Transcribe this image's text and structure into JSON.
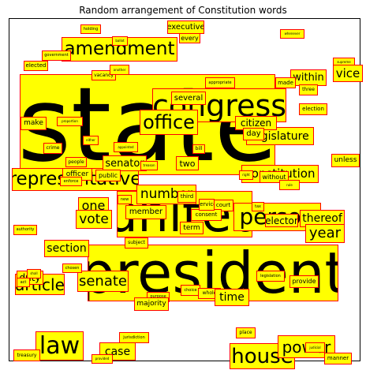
{
  "title": "Random arrangement of Constitution words",
  "colors": {
    "box_fill": "#ffff00",
    "box_border": "#ff0000",
    "text": "#000000"
  },
  "words": [
    "state",
    "president",
    "united",
    "congress",
    "amendment",
    "person",
    "representative",
    "office",
    "article",
    "law",
    "house",
    "senate",
    "power",
    "number",
    "senator",
    "legislature",
    "executive",
    "every",
    "holding",
    "ballot",
    "government",
    "elected",
    "whenever",
    "supreme",
    "vice",
    "within",
    "vacancy",
    "another",
    "appropriate",
    "made",
    "three",
    "election",
    "several",
    "citizen",
    "make",
    "day",
    "proportion",
    "either",
    "crime",
    "appointed",
    "bill",
    "unless",
    "constitution",
    "people",
    "treason",
    "two",
    "officer",
    "public",
    "enforce",
    "right",
    "without",
    "rule",
    "one",
    "third",
    "new",
    "court",
    "tax",
    "member",
    "consent",
    "vote",
    "elector",
    "thereof",
    "authority",
    "term",
    "year",
    "subject",
    "section",
    "duty",
    "shall",
    "chosen",
    "act",
    "legislation",
    "provide",
    "choice",
    "whole",
    "purpose",
    "majority",
    "time",
    "place",
    "jurisdiction",
    "case",
    "age",
    "treasury",
    "judicial",
    "provided",
    "manner",
    "service"
  ]
}
